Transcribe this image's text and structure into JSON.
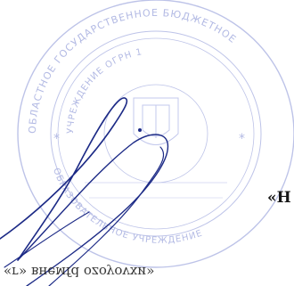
{
  "document": {
    "text_fragment_right": "«H",
    "text_fragment_bottom": "«г» внемfd ozоyоvхи»"
  },
  "stamp": {
    "color": "#b6bde6",
    "icon": "round-seal-icon"
  },
  "signature": {
    "color": "#1c2a86",
    "icon": "handwritten-signature-icon"
  }
}
